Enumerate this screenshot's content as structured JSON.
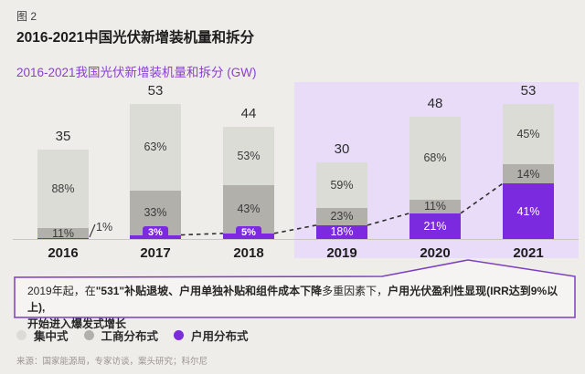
{
  "colors": {
    "page_bg": "#efedea",
    "highlight_bg": "#e9dcf8",
    "centralized": "#dcdcd7",
    "commercial_industrial": "#b2b0ab",
    "residential": "#7b2ae0",
    "subtitle_purple": "#8a3ed2",
    "annotation_border": "#7c3fbf",
    "annotation_fill": "#f6f4f2",
    "dashed_line": "#2f2f2f",
    "baseline": "#c9c7c3"
  },
  "header": {
    "figure_label": "图 2",
    "title": "2016-2021中国光伏新增装机量和拆分"
  },
  "chart_data": {
    "type": "bar",
    "stacked": true,
    "title": "2016-2021我国光伏新增装机量和拆分 (GW)",
    "unit": "GW",
    "categories": [
      "2016",
      "2017",
      "2018",
      "2019",
      "2020",
      "2021"
    ],
    "totals": [
      35,
      53,
      44,
      30,
      48,
      53
    ],
    "series": [
      {
        "name": "集中式",
        "key": "centralized",
        "color": "#dcdcd7",
        "pct": [
          88,
          63,
          53,
          59,
          68,
          45
        ]
      },
      {
        "name": "工商分布式",
        "key": "commercial-industrial",
        "color": "#b2b0ab",
        "pct": [
          11,
          33,
          43,
          23,
          11,
          14
        ]
      },
      {
        "name": "户用分布式",
        "key": "residential",
        "color": "#7b2ae0",
        "pct": [
          1,
          3,
          5,
          18,
          21,
          41
        ]
      }
    ],
    "highlight_years": [
      "2019",
      "2020",
      "2021"
    ],
    "trend_line": "dashed line tracing tops of 户用分布式 segments from 2017 to 2021",
    "axis": "no y-axis; baseline only; totals labeled above bars; segment percentages labeled inside bars",
    "legend_position": "bottom-left"
  },
  "annotation": {
    "segments": [
      {
        "text": "2019年起，在",
        "bold": false
      },
      {
        "text": "\"531\"补贴退坡、户用单独补贴和组件成本下降",
        "bold": true
      },
      {
        "text": "多重因素下，",
        "bold": false
      },
      {
        "text": "户用光伏盈利性显现(IRR达到9%以上),",
        "bold": true
      },
      {
        "text": "开始进入爆发式增长",
        "bold": true,
        "break_before": true
      }
    ]
  },
  "legend": {
    "items": [
      {
        "label": "集中式",
        "color": "#dcdcd7"
      },
      {
        "label": "工商分布式",
        "color": "#b2b0ab"
      },
      {
        "label": "户用分布式",
        "color": "#7b2ae0"
      }
    ]
  },
  "source": "来源：国家能源局，专家访谈，案头研究；科尔尼"
}
